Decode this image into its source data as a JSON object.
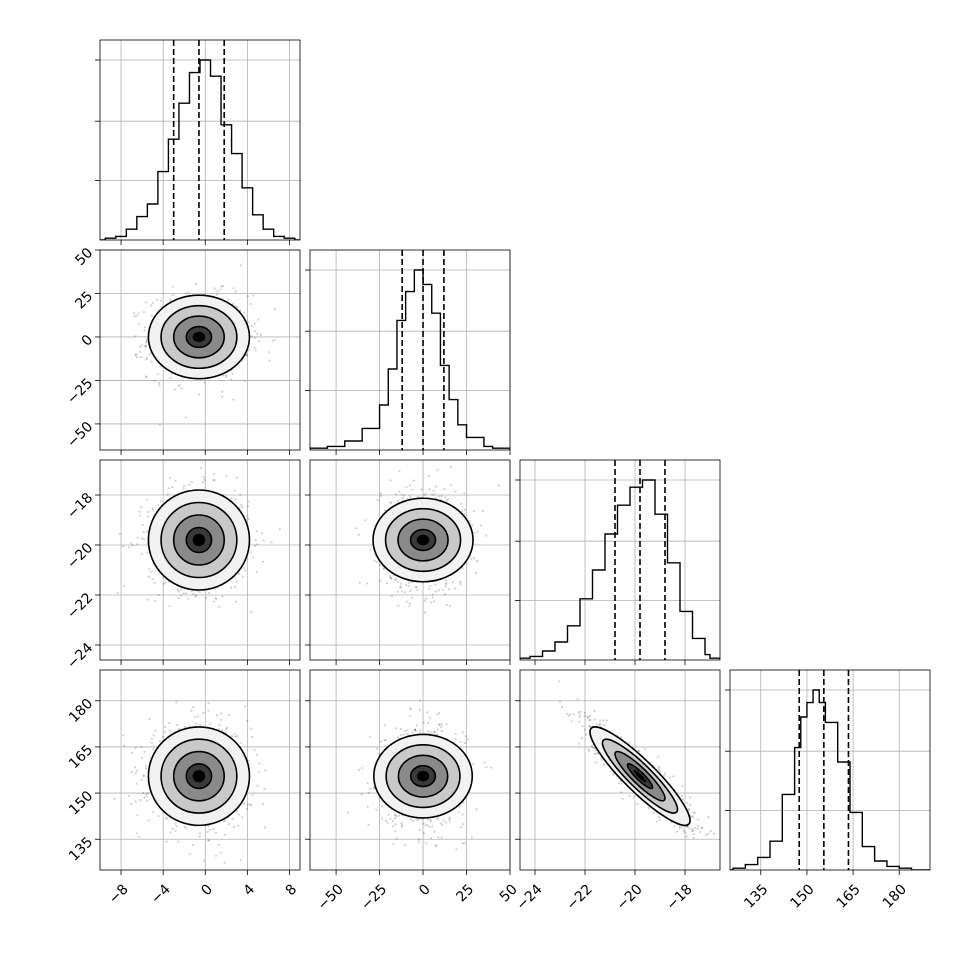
{
  "chart_data": {
    "type": "corner",
    "grid": true,
    "parameters": [
      {
        "index": 0,
        "range": [
          -10,
          9
        ],
        "ticks": [
          -8,
          -4,
          0,
          4,
          8
        ],
        "mean": -0.6,
        "sd": 2.4,
        "quantiles": [
          -3.0,
          -0.6,
          1.8
        ]
      },
      {
        "index": 1,
        "range": [
          -65,
          50
        ],
        "ticks": [
          -50,
          -25,
          0,
          25,
          50
        ],
        "mean": 0.0,
        "sd": 12.0,
        "quantiles": [
          -12.0,
          0.0,
          12.0
        ]
      },
      {
        "index": 2,
        "range": [
          -24.6,
          -16.6
        ],
        "ticks": [
          -24,
          -22,
          -20,
          -18
        ],
        "mean": -19.8,
        "sd": 1.0,
        "quantiles": [
          -20.8,
          -19.8,
          -18.8
        ]
      },
      {
        "index": 3,
        "range": [
          125,
          190
        ],
        "ticks": [
          135,
          150,
          165,
          180
        ],
        "mean": 155.5,
        "sd": 8.0,
        "quantiles": [
          147.5,
          155.5,
          163.5
        ]
      }
    ],
    "histograms": [
      {
        "param": 0,
        "bins": [
          {
            "x": -9,
            "y": 0.01
          },
          {
            "x": -8,
            "y": 0.02
          },
          {
            "x": -7,
            "y": 0.06
          },
          {
            "x": -6,
            "y": 0.13
          },
          {
            "x": -5,
            "y": 0.2
          },
          {
            "x": -4,
            "y": 0.38
          },
          {
            "x": -3,
            "y": 0.56
          },
          {
            "x": -2,
            "y": 0.76
          },
          {
            "x": -1,
            "y": 0.93
          },
          {
            "x": 0,
            "y": 1.0
          },
          {
            "x": 1,
            "y": 0.91
          },
          {
            "x": 2,
            "y": 0.64
          },
          {
            "x": 3,
            "y": 0.48
          },
          {
            "x": 4,
            "y": 0.29
          },
          {
            "x": 5,
            "y": 0.14
          },
          {
            "x": 6,
            "y": 0.06
          },
          {
            "x": 7,
            "y": 0.02
          },
          {
            "x": 8,
            "y": 0.01
          }
        ]
      },
      {
        "param": 1,
        "bins": [
          {
            "x": -60,
            "y": 0.01
          },
          {
            "x": -50,
            "y": 0.02
          },
          {
            "x": -40,
            "y": 0.05
          },
          {
            "x": -30,
            "y": 0.12
          },
          {
            "x": -20,
            "y": 0.25
          },
          {
            "x": -15,
            "y": 0.45
          },
          {
            "x": -10,
            "y": 0.72
          },
          {
            "x": -5,
            "y": 0.88
          },
          {
            "x": 0,
            "y": 1.0
          },
          {
            "x": 5,
            "y": 0.92
          },
          {
            "x": 10,
            "y": 0.76
          },
          {
            "x": 15,
            "y": 0.47
          },
          {
            "x": 20,
            "y": 0.28
          },
          {
            "x": 25,
            "y": 0.14
          },
          {
            "x": 30,
            "y": 0.07
          },
          {
            "x": 40,
            "y": 0.02
          },
          {
            "x": 45,
            "y": 0.01
          }
        ]
      },
      {
        "param": 2,
        "bins": [
          {
            "x": -24.4,
            "y": 0.01
          },
          {
            "x": -24.0,
            "y": 0.02
          },
          {
            "x": -23.5,
            "y": 0.05
          },
          {
            "x": -23.0,
            "y": 0.1
          },
          {
            "x": -22.5,
            "y": 0.19
          },
          {
            "x": -22.0,
            "y": 0.34
          },
          {
            "x": -21.5,
            "y": 0.5
          },
          {
            "x": -21.0,
            "y": 0.7
          },
          {
            "x": -20.5,
            "y": 0.86
          },
          {
            "x": -20.0,
            "y": 0.96
          },
          {
            "x": -19.5,
            "y": 1.0
          },
          {
            "x": -19.0,
            "y": 0.81
          },
          {
            "x": -18.5,
            "y": 0.54
          },
          {
            "x": -18.0,
            "y": 0.27
          },
          {
            "x": -17.5,
            "y": 0.12
          },
          {
            "x": -17.0,
            "y": 0.03
          },
          {
            "x": -16.8,
            "y": 0.01
          }
        ]
      },
      {
        "param": 3,
        "bins": [
          {
            "x": 128,
            "y": 0.01
          },
          {
            "x": 132,
            "y": 0.03
          },
          {
            "x": 136,
            "y": 0.07
          },
          {
            "x": 140,
            "y": 0.16
          },
          {
            "x": 144,
            "y": 0.42
          },
          {
            "x": 148,
            "y": 0.68
          },
          {
            "x": 150,
            "y": 0.85
          },
          {
            "x": 152,
            "y": 0.93
          },
          {
            "x": 154,
            "y": 1.0
          },
          {
            "x": 156,
            "y": 0.93
          },
          {
            "x": 158,
            "y": 0.82
          },
          {
            "x": 162,
            "y": 0.6
          },
          {
            "x": 166,
            "y": 0.32
          },
          {
            "x": 170,
            "y": 0.13
          },
          {
            "x": 174,
            "y": 0.05
          },
          {
            "x": 178,
            "y": 0.02
          },
          {
            "x": 182,
            "y": 0.01
          }
        ]
      }
    ],
    "pairs": [
      {
        "x": 0,
        "y": 1,
        "correlation": 0.0
      },
      {
        "x": 0,
        "y": 2,
        "correlation": 0.0
      },
      {
        "x": 1,
        "y": 2,
        "correlation": 0.0
      },
      {
        "x": 0,
        "y": 3,
        "correlation": 0.0
      },
      {
        "x": 1,
        "y": 3,
        "correlation": 0.0
      },
      {
        "x": 2,
        "y": 3,
        "correlation": -0.9
      }
    ],
    "contour_levels_sigma": [
      0.5,
      1.0,
      1.5,
      2.0
    ],
    "points_per_panel": 900
  }
}
